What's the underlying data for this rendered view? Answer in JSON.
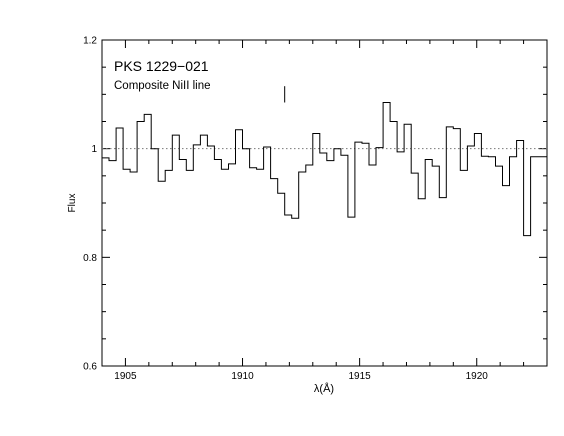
{
  "chart_data": {
    "type": "line",
    "step": true,
    "title": "PKS 1229−021",
    "subtitle": "Composite NiII line",
    "xlabel": "λ(Å)",
    "ylabel": "Flux",
    "xlim": [
      1904.0,
      1923.0
    ],
    "ylim": [
      0.6,
      1.2
    ],
    "x_ticks": [
      1905,
      1910,
      1915,
      1920
    ],
    "y_ticks": [
      0.6,
      0.8,
      1.0,
      1.2
    ],
    "x_tick_labels": [
      "1905",
      "1910",
      "1915",
      "1920"
    ],
    "y_tick_labels": [
      "0.6",
      "0.8",
      "1",
      "1.2"
    ],
    "continuum_level": 1.0,
    "marker_wavelength": 1911.8,
    "marker_range": [
      1.085,
      1.115
    ],
    "series": [
      {
        "bin_edges": [
          1904.0,
          1904.3,
          1904.6,
          1904.9,
          1905.2,
          1905.5,
          1905.8,
          1906.1,
          1906.4,
          1906.7,
          1907.0,
          1907.3,
          1907.6,
          1907.9,
          1908.2,
          1908.5,
          1908.8,
          1909.1,
          1909.4,
          1909.7,
          1910.0,
          1910.3,
          1910.6,
          1910.9,
          1911.2,
          1911.5,
          1911.8,
          1912.1,
          1912.4,
          1912.7,
          1913.0,
          1913.3,
          1913.6,
          1913.9,
          1914.2,
          1914.5,
          1914.8,
          1915.1,
          1915.4,
          1915.7,
          1916.0,
          1916.3,
          1916.6,
          1916.9,
          1917.2,
          1917.5,
          1917.8,
          1918.1,
          1918.4,
          1918.7,
          1919.0,
          1919.3,
          1919.6,
          1919.9,
          1920.2,
          1920.5,
          1920.8,
          1921.1,
          1921.4,
          1921.7,
          1922.0,
          1922.3,
          1922.6,
          1923.0
        ],
        "values": [
          0.983,
          0.978,
          1.038,
          0.962,
          0.957,
          1.05,
          1.063,
          1.0,
          0.94,
          0.96,
          1.025,
          0.98,
          0.96,
          1.007,
          1.025,
          1.005,
          0.98,
          0.962,
          0.972,
          1.035,
          1.0,
          0.965,
          0.962,
          1.003,
          0.945,
          0.918,
          0.878,
          0.872,
          0.957,
          0.97,
          1.028,
          0.992,
          0.978,
          1.0,
          0.988,
          0.874,
          1.012,
          1.01,
          0.97,
          1.002,
          1.085,
          1.05,
          0.994,
          1.045,
          0.955,
          0.908,
          0.98,
          0.968,
          0.91,
          1.04,
          1.037,
          0.96,
          1.005,
          1.028,
          0.986,
          0.985,
          0.968,
          0.932,
          0.985,
          1.015,
          0.84,
          0.985,
          0.985
        ]
      }
    ]
  }
}
